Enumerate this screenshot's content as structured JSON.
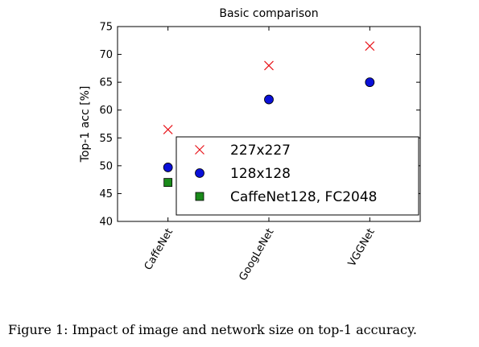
{
  "chart_data": {
    "type": "scatter",
    "title": "Basic comparison",
    "xlabel": "",
    "ylabel": "Top-1 acc [%]",
    "categories": [
      "CaffeNet",
      "GoogLeNet",
      "VGGNet"
    ],
    "ylim": [
      40,
      75
    ],
    "yticks": [
      40,
      45,
      50,
      55,
      60,
      65,
      70,
      75
    ],
    "grid": false,
    "legend_position": "lower-right",
    "series": [
      {
        "name": "227x227",
        "marker": "x",
        "color": "#e8151b",
        "values": [
          56.5,
          68.0,
          71.5
        ]
      },
      {
        "name": "128x128",
        "marker": "circle",
        "color": "#0a10d8",
        "values": [
          49.7,
          61.9,
          65.0
        ]
      },
      {
        "name": "CaffeNet128, FC2048",
        "marker": "square",
        "color": "#1a8a1a",
        "values": [
          47.0,
          null,
          null
        ]
      }
    ]
  },
  "caption": "Figure 1: Impact of image and network size on top-1 accuracy."
}
